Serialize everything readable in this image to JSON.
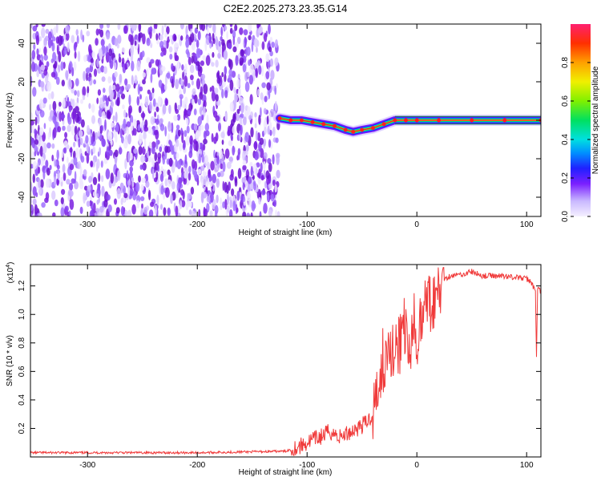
{
  "title": "C2E2.2025.273.23.35.G14",
  "colors": {
    "snr_line": "#f03a3a",
    "spectrogram_noise": "#7a1fe0",
    "track": "#e03030",
    "colormap": [
      "#f5f0ff",
      "#c9b8ff",
      "#9b6cff",
      "#6a00ff",
      "#2020ff",
      "#0090ff",
      "#00e0e0",
      "#00e060",
      "#80f000",
      "#f0f000",
      "#ffa000",
      "#ff3000",
      "#ff2070"
    ]
  },
  "chart_data": [
    {
      "type": "heatmap",
      "name": "spectrogram",
      "xlabel": "Height of straight line (km)",
      "ylabel": "Frequency (Hz)",
      "xlim": [
        -352,
        113
      ],
      "ylim": [
        -50,
        50
      ],
      "xticks": [
        -300,
        -200,
        -100,
        0,
        100
      ],
      "yticks": [
        -40,
        -20,
        0,
        20,
        40
      ],
      "noise_region_x": [
        -352,
        -126
      ],
      "signal_start_x": -126,
      "track": {
        "x": [
          -125,
          -115,
          -105,
          -95,
          -85,
          -75,
          -65,
          -58,
          -50,
          -40,
          -30,
          -20,
          -10,
          0,
          20,
          50,
          80,
          113
        ],
        "y": [
          1,
          0,
          0,
          -1,
          -2,
          -3,
          -5,
          -6,
          -5,
          -4,
          -2,
          0,
          0,
          0,
          0,
          0,
          0,
          0
        ]
      },
      "colorbar": {
        "label": "Normalized spectral amplitude",
        "ticks": [
          "0.0",
          "0.2",
          "0.4",
          "0.6",
          "0.8"
        ],
        "range": [
          0,
          1
        ]
      }
    },
    {
      "type": "line",
      "name": "snr",
      "xlabel": "Height of straight line (km)",
      "ylabel": "SNR (10 * v/v)",
      "yscale_label": "(x10",
      "yscale_exp": "4",
      "yscale_suffix": ")",
      "xlim": [
        -352,
        113
      ],
      "ylim": [
        0,
        1.35
      ],
      "xticks": [
        -300,
        -200,
        -100,
        0,
        100
      ],
      "yticks": [
        0.2,
        0.4,
        0.6,
        0.8,
        1.0,
        1.2
      ],
      "series": [
        {
          "x": [
            -352,
            -300,
            -200,
            -120,
            -105,
            -95,
            -85,
            -80,
            -70,
            -60,
            -50,
            -45,
            -40,
            -35,
            -30,
            -25,
            -20,
            -15,
            -10,
            -5,
            0,
            5,
            10,
            15,
            20,
            25,
            30,
            40,
            50,
            60,
            70,
            80,
            90,
            100,
            105,
            108,
            109,
            110,
            113
          ],
          "y": [
            0.03,
            0.03,
            0.03,
            0.04,
            0.08,
            0.12,
            0.15,
            0.18,
            0.14,
            0.18,
            0.22,
            0.25,
            0.3,
            0.55,
            0.62,
            0.75,
            0.8,
            0.8,
            0.85,
            0.8,
            0.85,
            1.0,
            1.05,
            1.1,
            1.2,
            1.25,
            1.27,
            1.28,
            1.3,
            1.27,
            1.27,
            1.27,
            1.26,
            1.25,
            1.22,
            1.15,
            0.72,
            1.18,
            1.16
          ]
        }
      ]
    }
  ]
}
